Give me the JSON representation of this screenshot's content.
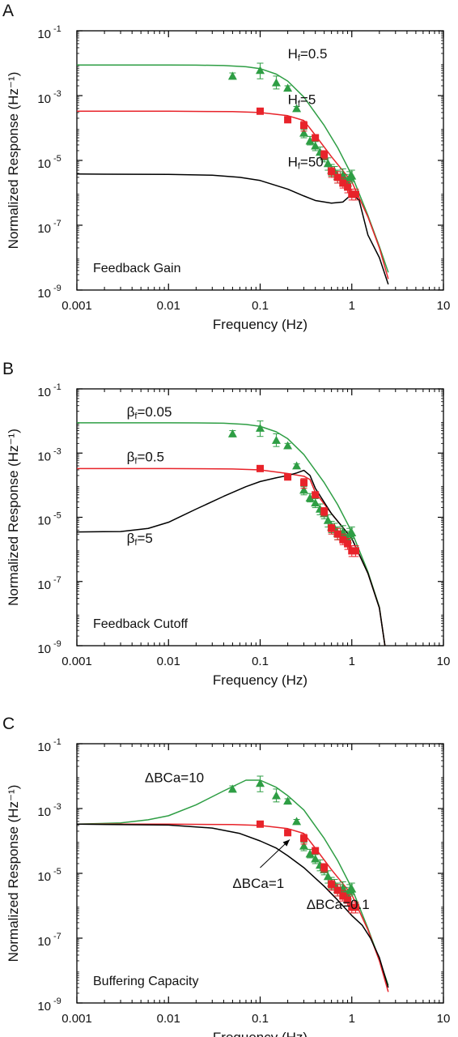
{
  "colors": {
    "green": "#2e9e44",
    "red": "#e8232a",
    "black": "#000000"
  },
  "chart_data": [
    {
      "type": "line",
      "panel_label": "A",
      "xlabel": "Frequency (Hz)",
      "ylabel": "Normalized Response (Hz⁻¹)",
      "x_scale": "log",
      "y_scale": "log",
      "xlim": [
        0.001,
        10
      ],
      "ylim": [
        1e-09,
        0.1
      ],
      "x_ticks": [
        {
          "value": 0.001,
          "label": "0.001"
        },
        {
          "value": 0.01,
          "label": "0.01"
        },
        {
          "value": 0.1,
          "label": "0.1"
        },
        {
          "value": 1,
          "label": "1"
        },
        {
          "value": 10,
          "label": "10"
        }
      ],
      "y_ticks": [
        {
          "value": 0.1,
          "label": "10",
          "exp": "-1"
        },
        {
          "value": 0.001,
          "label": "10",
          "exp": "-3"
        },
        {
          "value": 1e-05,
          "label": "10",
          "exp": "-5"
        },
        {
          "value": 1e-07,
          "label": "10",
          "exp": "-7"
        },
        {
          "value": 1e-09,
          "label": "10",
          "exp": "-9"
        }
      ],
      "annotation": "Feedback Gain",
      "series": [
        {
          "color": "green",
          "type": "line",
          "x": [
            0.001,
            0.005,
            0.01,
            0.02,
            0.04,
            0.07,
            0.1,
            0.15,
            0.2,
            0.3,
            0.5,
            0.7,
            1,
            1.5,
            2,
            2.5
          ],
          "y": [
            0.0088,
            0.0088,
            0.0088,
            0.0087,
            0.0085,
            0.0078,
            0.0068,
            0.0046,
            0.0028,
            0.0009,
            0.00012,
            2.5e-05,
            3.5e-06,
            2e-07,
            2.2e-08,
            3.5e-09
          ]
        },
        {
          "color": "red",
          "type": "line",
          "x": [
            0.001,
            0.01,
            0.05,
            0.1,
            0.2,
            0.3,
            0.4,
            0.6,
            1,
            1.5,
            2,
            2.5
          ],
          "y": [
            0.00033,
            0.00033,
            0.00032,
            0.0003,
            0.00024,
            0.00017,
            6e-05,
            1.3e-05,
            2.2e-06,
            1.8e-07,
            2e-08,
            2.2e-09
          ]
        },
        {
          "color": "black",
          "type": "line",
          "x": [
            0.001,
            0.01,
            0.03,
            0.06,
            0.1,
            0.2,
            0.3,
            0.4,
            0.6,
            0.8,
            1,
            1.2,
            1.5,
            2,
            2.5
          ],
          "y": [
            3.8e-06,
            3.7e-06,
            3.5e-06,
            3e-06,
            2.4e-06,
            1.3e-06,
            8e-07,
            5.8e-07,
            4.8e-07,
            5.2e-07,
            9e-07,
            6e-07,
            5e-08,
            1e-08,
            1.5e-09
          ]
        },
        {
          "color": "green",
          "type": "scatter",
          "marker": "triangle",
          "x": [
            0.05,
            0.1,
            0.15,
            0.2,
            0.25,
            0.3,
            0.35,
            0.4,
            0.45,
            0.5,
            0.55,
            0.6,
            0.65,
            0.7,
            0.75,
            0.8,
            0.85,
            0.9,
            0.95,
            1.0
          ],
          "y": [
            0.004,
            0.006,
            0.0025,
            0.0017,
            0.0004,
            7e-05,
            4e-05,
            2.8e-05,
            1.8e-05,
            1.3e-05,
            8e-06,
            5e-06,
            4.5e-06,
            3.2e-06,
            3e-06,
            3.5e-06,
            2.5e-06,
            2e-06,
            3e-06,
            3.3e-06
          ],
          "err_low": [
            0.0032,
            0.0033,
            0.0016,
            0.0015,
            0.00035,
            5e-05,
            3e-05,
            2e-05,
            1.2e-05,
            9e-06,
            5e-06,
            3.3e-06,
            3e-06,
            2e-06,
            2e-06,
            2.2e-06,
            1.7e-06,
            1.4e-06,
            2e-06,
            2.2e-06
          ],
          "err_high": [
            0.005,
            0.01,
            0.004,
            0.002,
            0.00046,
            9e-05,
            5.5e-05,
            3.8e-05,
            2.6e-05,
            1.9e-05,
            1.2e-05,
            7.5e-06,
            6.5e-06,
            5e-06,
            4.5e-06,
            5.5e-06,
            3.7e-06,
            3e-06,
            4.5e-06,
            5e-06
          ]
        },
        {
          "color": "red",
          "type": "scatter",
          "marker": "square",
          "x": [
            0.1,
            0.2,
            0.3,
            0.4,
            0.5,
            0.6,
            0.7,
            0.8,
            0.9,
            1.0,
            1.1
          ],
          "y": [
            0.00033,
            0.00018,
            0.00012,
            5e-05,
            1.5e-05,
            4.5e-06,
            3e-06,
            2e-06,
            1.5e-06,
            9e-07,
            9e-07
          ],
          "err_low": [
            0.0003,
            0.00016,
            8e-05,
            4e-05,
            1.1e-05,
            3e-06,
            2e-06,
            1.4e-06,
            1e-06,
            6e-07,
            6e-07
          ],
          "err_high": [
            0.00036,
            0.0002,
            0.00016,
            6e-05,
            2e-05,
            6e-06,
            4.5e-06,
            3e-06,
            2.2e-06,
            1.3e-06,
            1.3e-06
          ]
        }
      ],
      "labels": [
        {
          "text": "H",
          "sub": "f",
          "rest": "=0.5",
          "x": 0.2,
          "y": 0.014
        },
        {
          "text": "H",
          "sub": "f",
          "rest": "=5",
          "x": 0.2,
          "y": 0.00055
        },
        {
          "text": "H",
          "sub": "f",
          "rest": "=50",
          "x": 0.2,
          "y": 6.5e-06
        }
      ]
    },
    {
      "type": "line",
      "panel_label": "B",
      "xlabel": "Frequency (Hz)",
      "ylabel": "Normalized Response (Hz⁻¹)",
      "x_scale": "log",
      "y_scale": "log",
      "xlim": [
        0.001,
        10
      ],
      "ylim": [
        1e-09,
        0.1
      ],
      "x_ticks": [
        {
          "value": 0.001,
          "label": "0.001"
        },
        {
          "value": 0.01,
          "label": "0.01"
        },
        {
          "value": 0.1,
          "label": "0.1"
        },
        {
          "value": 1,
          "label": "1"
        },
        {
          "value": 10,
          "label": "10"
        }
      ],
      "y_ticks": [
        {
          "value": 0.1,
          "label": "10",
          "exp": "-1"
        },
        {
          "value": 0.001,
          "label": "10",
          "exp": "-3"
        },
        {
          "value": 1e-05,
          "label": "10",
          "exp": "-5"
        },
        {
          "value": 1e-07,
          "label": "10",
          "exp": "-7"
        },
        {
          "value": 1e-09,
          "label": "10",
          "exp": "-9"
        }
      ],
      "annotation": "Feedback Cutoff",
      "series": [
        {
          "color": "green",
          "type": "line",
          "x": [
            0.001,
            0.005,
            0.01,
            0.02,
            0.04,
            0.07,
            0.1,
            0.15,
            0.2,
            0.3,
            0.5,
            0.7,
            1,
            1.5,
            2,
            2.3
          ],
          "y": [
            0.0088,
            0.0088,
            0.0088,
            0.0087,
            0.0085,
            0.0078,
            0.0068,
            0.0046,
            0.0028,
            0.0009,
            0.00012,
            2.5e-05,
            3.5e-06,
            2e-07,
            1.6e-08,
            1e-09
          ]
        },
        {
          "color": "red",
          "type": "line",
          "x": [
            0.001,
            0.01,
            0.05,
            0.1,
            0.2,
            0.3,
            0.35,
            0.4,
            0.6,
            1,
            1.5,
            2,
            2.3
          ],
          "y": [
            0.00033,
            0.00033,
            0.00032,
            0.0003,
            0.00023,
            0.00019,
            0.00015,
            6e-05,
            1.3e-05,
            2.2e-06,
            1.8e-07,
            1.5e-08,
            1e-09
          ]
        },
        {
          "color": "black",
          "type": "line",
          "x": [
            0.001,
            0.003,
            0.006,
            0.01,
            0.02,
            0.04,
            0.07,
            0.1,
            0.15,
            0.2,
            0.25,
            0.3,
            0.35,
            0.4,
            0.6,
            1,
            1.5,
            2,
            2.3
          ],
          "y": [
            3.5e-06,
            3.6e-06,
            4.5e-06,
            7e-06,
            1.8e-05,
            4.5e-05,
            9e-05,
            0.00013,
            0.00017,
            0.0002,
            0.00024,
            0.00029,
            0.0002,
            8e-05,
            1.3e-05,
            2.2e-06,
            1.8e-07,
            1.5e-08,
            1e-09
          ]
        },
        {
          "color": "green",
          "type": "scatter",
          "marker": "triangle",
          "x": [
            0.05,
            0.1,
            0.15,
            0.2,
            0.25,
            0.3,
            0.35,
            0.4,
            0.45,
            0.5,
            0.55,
            0.6,
            0.65,
            0.7,
            0.75,
            0.8,
            0.85,
            0.9,
            0.95,
            1.0
          ],
          "y": [
            0.004,
            0.006,
            0.0025,
            0.0017,
            0.0004,
            7e-05,
            4e-05,
            2.8e-05,
            1.8e-05,
            1.3e-05,
            8e-06,
            5e-06,
            4.5e-06,
            3.2e-06,
            3e-06,
            3.5e-06,
            2.5e-06,
            2e-06,
            3e-06,
            3.3e-06
          ],
          "err_low": [
            0.0032,
            0.0033,
            0.0016,
            0.0015,
            0.00035,
            5e-05,
            3e-05,
            2e-05,
            1.2e-05,
            9e-06,
            5e-06,
            3.3e-06,
            3e-06,
            2e-06,
            2e-06,
            2.2e-06,
            1.7e-06,
            1.4e-06,
            2e-06,
            2.2e-06
          ],
          "err_high": [
            0.005,
            0.01,
            0.004,
            0.002,
            0.00046,
            9e-05,
            5.5e-05,
            3.8e-05,
            2.6e-05,
            1.9e-05,
            1.2e-05,
            7.5e-06,
            6.5e-06,
            5e-06,
            4.5e-06,
            5.5e-06,
            3.7e-06,
            3e-06,
            4.5e-06,
            5e-06
          ]
        },
        {
          "color": "red",
          "type": "scatter",
          "marker": "square",
          "x": [
            0.1,
            0.2,
            0.3,
            0.4,
            0.5,
            0.6,
            0.7,
            0.8,
            0.9,
            1.0,
            1.1
          ],
          "y": [
            0.00033,
            0.00018,
            0.00012,
            5e-05,
            1.5e-05,
            4.5e-06,
            3e-06,
            2e-06,
            1.5e-06,
            9e-07,
            9e-07
          ],
          "err_low": [
            0.0003,
            0.00016,
            8e-05,
            4e-05,
            1.1e-05,
            3e-06,
            2e-06,
            1.4e-06,
            1e-06,
            6e-07,
            6e-07
          ],
          "err_high": [
            0.00036,
            0.0002,
            0.00016,
            6e-05,
            2e-05,
            6e-06,
            4.5e-06,
            3e-06,
            2.2e-06,
            1.3e-06,
            1.3e-06
          ]
        }
      ],
      "labels": [
        {
          "text": "β",
          "sub": "f",
          "rest": "=0.05",
          "x": 0.0035,
          "y": 0.014
        },
        {
          "text": "β",
          "sub": "f",
          "rest": "=0.5",
          "x": 0.0035,
          "y": 0.00055
        },
        {
          "text": "β",
          "sub": "f",
          "rest": "=5",
          "x": 0.0035,
          "y": 1.6e-06
        }
      ]
    },
    {
      "type": "line",
      "panel_label": "C",
      "xlabel": "Frequency (Hz)",
      "ylabel": "Normalized Response (Hz⁻¹)",
      "x_scale": "log",
      "y_scale": "log",
      "xlim": [
        0.001,
        10
      ],
      "ylim": [
        1e-09,
        0.1
      ],
      "x_ticks": [
        {
          "value": 0.001,
          "label": "0.001"
        },
        {
          "value": 0.01,
          "label": "0.01"
        },
        {
          "value": 0.1,
          "label": "0.1"
        },
        {
          "value": 1,
          "label": "1"
        },
        {
          "value": 10,
          "label": "10"
        }
      ],
      "y_ticks": [
        {
          "value": 0.1,
          "label": "10",
          "exp": "-1"
        },
        {
          "value": 0.001,
          "label": "10",
          "exp": "-3"
        },
        {
          "value": 1e-05,
          "label": "10",
          "exp": "-5"
        },
        {
          "value": 1e-07,
          "label": "10",
          "exp": "-7"
        },
        {
          "value": 1e-09,
          "label": "10",
          "exp": "-9"
        }
      ],
      "annotation": "Buffering Capacity",
      "series": [
        {
          "color": "green",
          "type": "line",
          "x": [
            0.001,
            0.003,
            0.006,
            0.01,
            0.02,
            0.04,
            0.07,
            0.1,
            0.15,
            0.2,
            0.3,
            0.5,
            0.7,
            1,
            1.5,
            2,
            2.5
          ],
          "y": [
            0.00033,
            0.00036,
            0.00045,
            0.0006,
            0.0013,
            0.0035,
            0.0075,
            0.0075,
            0.0045,
            0.0025,
            0.0009,
            0.00012,
            2.5e-05,
            3.5e-06,
            2e-07,
            2.2e-08,
            3.5e-09
          ]
        },
        {
          "color": "red",
          "type": "line",
          "x": [
            0.001,
            0.01,
            0.05,
            0.1,
            0.2,
            0.3,
            0.4,
            0.6,
            1,
            1.5,
            2,
            2.5
          ],
          "y": [
            0.00033,
            0.00033,
            0.00032,
            0.0003,
            0.00024,
            0.00017,
            6e-05,
            1.3e-05,
            2.2e-06,
            1.8e-07,
            2e-08,
            2.2e-09
          ]
        },
        {
          "color": "black",
          "type": "line",
          "x": [
            0.001,
            0.01,
            0.03,
            0.06,
            0.1,
            0.15,
            0.2,
            0.3,
            0.5,
            0.7,
            1,
            1.3,
            1.6,
            2,
            2.5
          ],
          "y": [
            0.00033,
            0.00031,
            0.00025,
            0.00017,
            0.0001,
            6e-05,
            3.5e-05,
            1.5e-05,
            4e-06,
            1.5e-06,
            5e-07,
            2.5e-07,
            1e-07,
            2.5e-08,
            3e-09
          ]
        },
        {
          "color": "green",
          "type": "scatter",
          "marker": "triangle",
          "x": [
            0.05,
            0.1,
            0.15,
            0.2,
            0.25,
            0.3,
            0.35,
            0.4,
            0.45,
            0.5,
            0.55,
            0.6,
            0.65,
            0.7,
            0.75,
            0.8,
            0.85,
            0.9,
            0.95,
            1.0
          ],
          "y": [
            0.004,
            0.006,
            0.0025,
            0.0017,
            0.0004,
            7e-05,
            4e-05,
            2.8e-05,
            1.8e-05,
            1.3e-05,
            8e-06,
            5e-06,
            4.5e-06,
            3.2e-06,
            3e-06,
            3.5e-06,
            2.5e-06,
            2e-06,
            3e-06,
            3.3e-06
          ],
          "err_low": [
            0.0032,
            0.0033,
            0.0016,
            0.0015,
            0.00035,
            5e-05,
            3e-05,
            2e-05,
            1.2e-05,
            9e-06,
            5e-06,
            3.3e-06,
            3e-06,
            2e-06,
            2e-06,
            2.2e-06,
            1.7e-06,
            1.4e-06,
            2e-06,
            2.2e-06
          ],
          "err_high": [
            0.005,
            0.01,
            0.004,
            0.002,
            0.00046,
            9e-05,
            5.5e-05,
            3.8e-05,
            2.6e-05,
            1.9e-05,
            1.2e-05,
            7.5e-06,
            6.5e-06,
            5e-06,
            4.5e-06,
            5.5e-06,
            3.7e-06,
            3e-06,
            4.5e-06,
            5e-06
          ]
        },
        {
          "color": "red",
          "type": "scatter",
          "marker": "square",
          "x": [
            0.1,
            0.2,
            0.3,
            0.4,
            0.5,
            0.6,
            0.7,
            0.8,
            0.9,
            1.0,
            1.1
          ],
          "y": [
            0.00033,
            0.00018,
            0.00012,
            5e-05,
            1.5e-05,
            4.5e-06,
            3e-06,
            2e-06,
            1.5e-06,
            9e-07,
            9e-07
          ],
          "err_low": [
            0.0003,
            0.00016,
            8e-05,
            4e-05,
            1.1e-05,
            3e-06,
            2e-06,
            1.4e-06,
            1e-06,
            6e-07,
            6e-07
          ],
          "err_high": [
            0.00036,
            0.0002,
            0.00016,
            6e-05,
            2e-05,
            6e-06,
            4.5e-06,
            3e-06,
            2.2e-06,
            1.3e-06,
            1.3e-06
          ]
        }
      ],
      "labels": [
        {
          "text": "ΔBCa=10",
          "x": 0.0055,
          "y": 0.0065
        },
        {
          "text": "ΔBCa=1",
          "x": 0.05,
          "y": 3.5e-06
        },
        {
          "text": "ΔBCa=0.1",
          "x": 0.32,
          "y": 8e-07
        }
      ],
      "arrows": [
        {
          "from_x": 0.1,
          "from_y": 1.5e-05,
          "to_x": 0.21,
          "to_y": 0.00011
        }
      ]
    }
  ]
}
